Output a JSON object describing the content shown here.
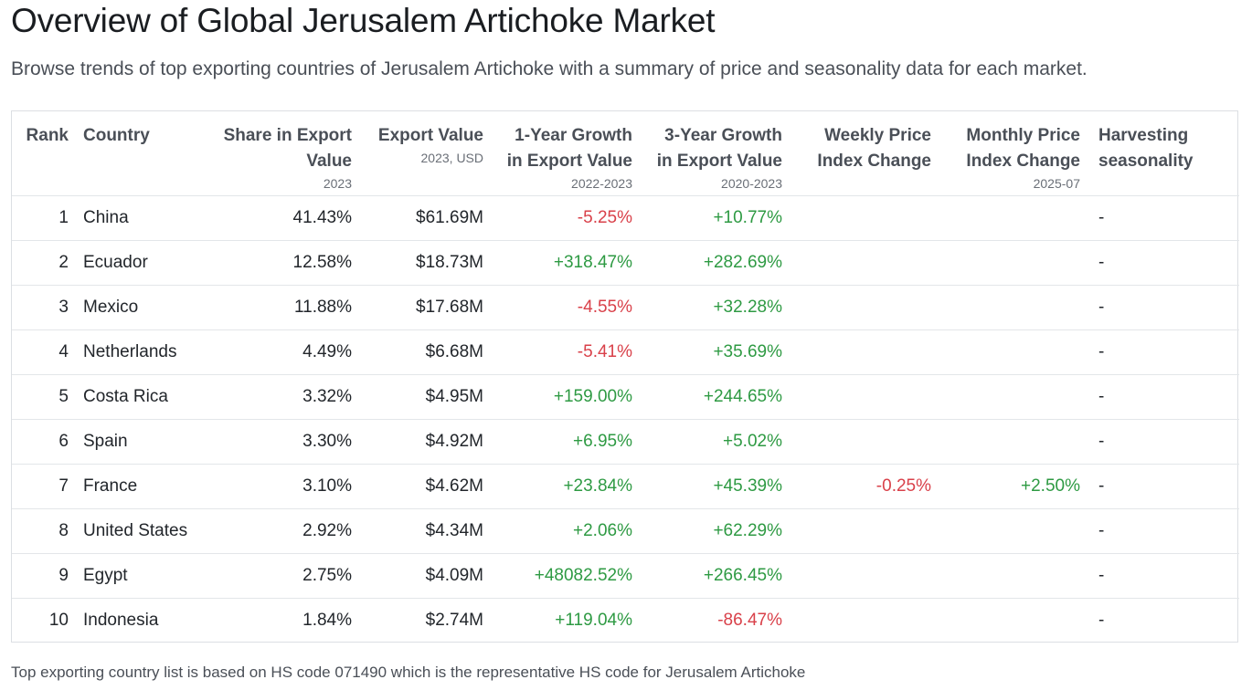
{
  "header": {
    "title": "Overview of Global Jerusalem Artichoke Market",
    "subtitle": "Browse trends of top exporting countries of Jerusalem Artichoke with a summary of price and seasonality data for each market."
  },
  "table": {
    "columns": [
      {
        "label": "Rank",
        "sub": ""
      },
      {
        "label": "Country",
        "sub": ""
      },
      {
        "label": "Share in Export Value",
        "sub": "2023"
      },
      {
        "label": "Export Value",
        "sub": "2023, USD"
      },
      {
        "label": "1-Year Growth in Export Value",
        "sub": "2022-2023"
      },
      {
        "label": "3-Year Growth in Export Value",
        "sub": "2020-2023"
      },
      {
        "label": "Weekly Price Index Change",
        "sub": ""
      },
      {
        "label": "Monthly Price Index Change",
        "sub": "2025-07"
      },
      {
        "label": "Harvesting seasonality",
        "sub": ""
      }
    ],
    "rows": [
      {
        "rank": "1",
        "country": "China",
        "share": "41.43%",
        "value": "$61.69M",
        "g1": "-5.25%",
        "g3": "+10.77%",
        "weekly": "",
        "monthly": "",
        "season": "-"
      },
      {
        "rank": "2",
        "country": "Ecuador",
        "share": "12.58%",
        "value": "$18.73M",
        "g1": "+318.47%",
        "g3": "+282.69%",
        "weekly": "",
        "monthly": "",
        "season": "-"
      },
      {
        "rank": "3",
        "country": "Mexico",
        "share": "11.88%",
        "value": "$17.68M",
        "g1": "-4.55%",
        "g3": "+32.28%",
        "weekly": "",
        "monthly": "",
        "season": "-"
      },
      {
        "rank": "4",
        "country": "Netherlands",
        "share": "4.49%",
        "value": "$6.68M",
        "g1": "-5.41%",
        "g3": "+35.69%",
        "weekly": "",
        "monthly": "",
        "season": "-"
      },
      {
        "rank": "5",
        "country": "Costa Rica",
        "share": "3.32%",
        "value": "$4.95M",
        "g1": "+159.00%",
        "g3": "+244.65%",
        "weekly": "",
        "monthly": "",
        "season": "-"
      },
      {
        "rank": "6",
        "country": "Spain",
        "share": "3.30%",
        "value": "$4.92M",
        "g1": "+6.95%",
        "g3": "+5.02%",
        "weekly": "",
        "monthly": "",
        "season": "-"
      },
      {
        "rank": "7",
        "country": "France",
        "share": "3.10%",
        "value": "$4.62M",
        "g1": "+23.84%",
        "g3": "+45.39%",
        "weekly": "-0.25%",
        "monthly": "+2.50%",
        "season": "-"
      },
      {
        "rank": "8",
        "country": "United States",
        "share": "2.92%",
        "value": "$4.34M",
        "g1": "+2.06%",
        "g3": "+62.29%",
        "weekly": "",
        "monthly": "",
        "season": "-"
      },
      {
        "rank": "9",
        "country": "Egypt",
        "share": "2.75%",
        "value": "$4.09M",
        "g1": "+48082.52%",
        "g3": "+266.45%",
        "weekly": "",
        "monthly": "",
        "season": "-"
      },
      {
        "rank": "10",
        "country": "Indonesia",
        "share": "1.84%",
        "value": "$2.74M",
        "g1": "+119.04%",
        "g3": "-86.47%",
        "weekly": "",
        "monthly": "",
        "season": "-"
      }
    ]
  },
  "footnote": "Top exporting country list is based on HS code 071490 which is the representative HS code for Jerusalem Artichoke",
  "colors": {
    "positive": "#2e9a43",
    "negative": "#d9414a"
  }
}
